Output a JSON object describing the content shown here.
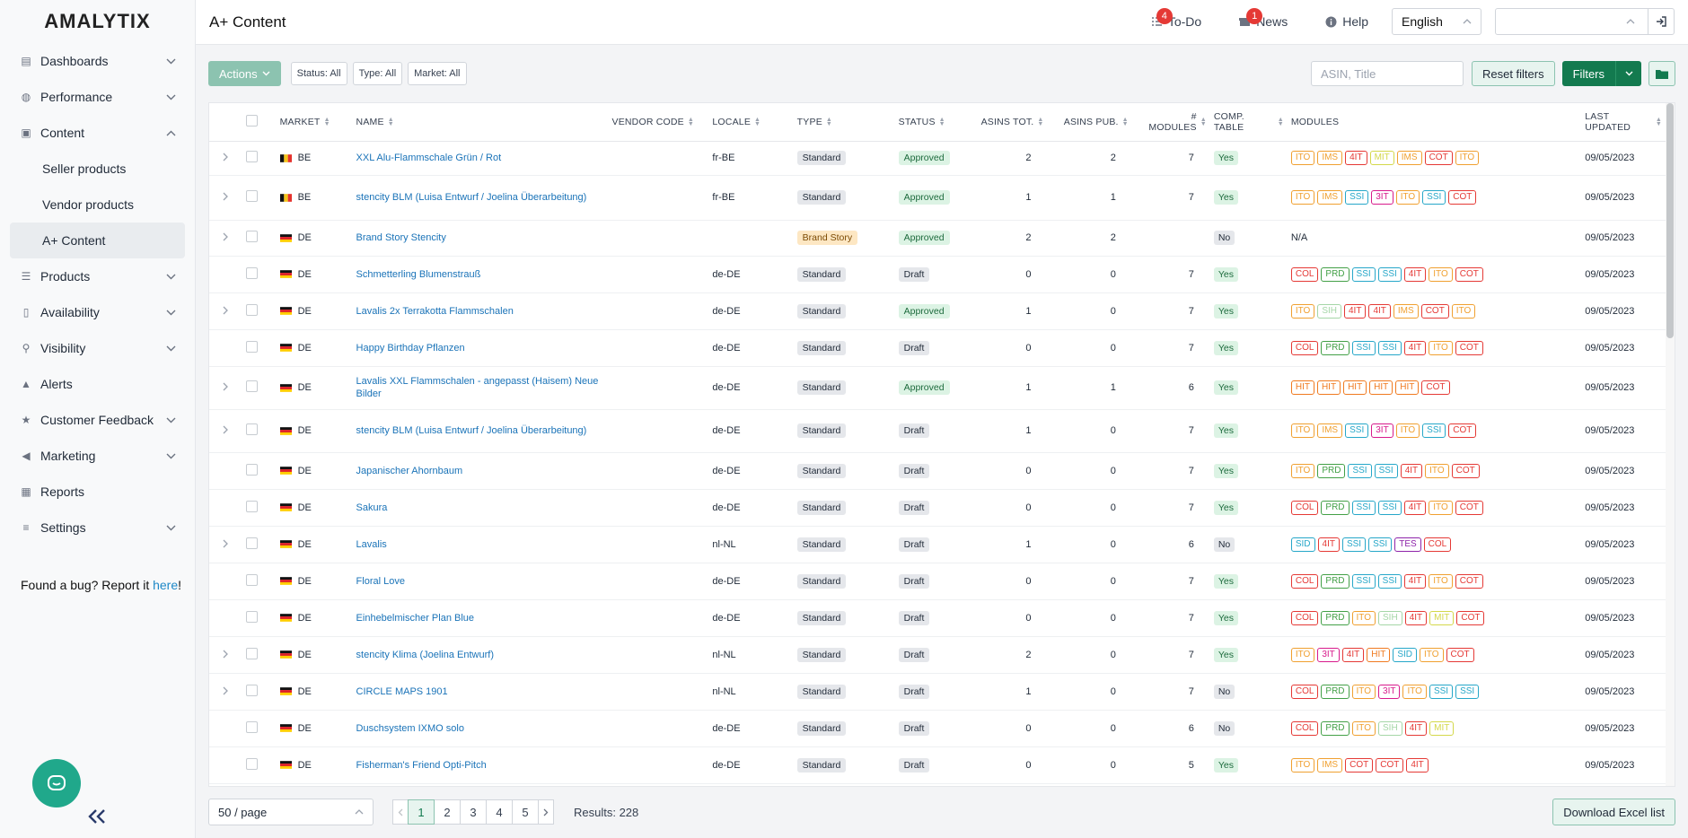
{
  "app": {
    "logo": "AMALYTIX",
    "page_title": "A+ Content"
  },
  "sidebar": {
    "items": [
      {
        "label": "Dashboards",
        "icon": "dashboard-icon",
        "chevron": "down"
      },
      {
        "label": "Performance",
        "icon": "performance-icon",
        "chevron": "down"
      },
      {
        "label": "Content",
        "icon": "content-icon",
        "chevron": "up"
      },
      {
        "label": "Products",
        "icon": "list-icon",
        "chevron": "down"
      },
      {
        "label": "Availability",
        "icon": "thermometer-icon",
        "chevron": "down"
      },
      {
        "label": "Visibility",
        "icon": "search-icon",
        "chevron": "down"
      },
      {
        "label": "Alerts",
        "icon": "bell-icon",
        "chevron": ""
      },
      {
        "label": "Customer Feedback",
        "icon": "star-icon",
        "chevron": "down"
      },
      {
        "label": "Marketing",
        "icon": "megaphone-icon",
        "chevron": "down"
      },
      {
        "label": "Reports",
        "icon": "table-icon",
        "chevron": ""
      },
      {
        "label": "Settings",
        "icon": "sliders-icon",
        "chevron": "down"
      }
    ],
    "content_sub": [
      "Seller products",
      "Vendor products",
      "A+ Content"
    ],
    "bug_text": "Found a bug? Report it ",
    "bug_link": "here",
    "bug_end": "!"
  },
  "topbar": {
    "todo_label": "To-Do",
    "todo_count": "4",
    "news_label": "News",
    "news_count": "1",
    "help_label": "Help",
    "language": "English",
    "account_value": ""
  },
  "toolbar": {
    "actions_label": "Actions",
    "chips": [
      "Status: All",
      "Type: All",
      "Market: All"
    ],
    "search_placeholder": "ASIN, Title",
    "reset_label": "Reset filters",
    "filters_label": "Filters"
  },
  "table": {
    "columns": {
      "market": "MARKET",
      "name": "NAME",
      "vendor_code": "VENDOR CODE",
      "locale": "LOCALE",
      "type": "TYPE",
      "status": "STATUS",
      "asins_tot": "ASINS TOT.",
      "asins_pub": "ASINS PUB.",
      "modules_1": "#",
      "modules_2": "MODULES",
      "comp_1": "COMP.",
      "comp_2": "TABLE",
      "module_list": "MODULES",
      "updated_1": "LAST",
      "updated_2": "UPDATED"
    },
    "module_colors": {
      "ITO": "#f0a030",
      "IMS": "#f0a030",
      "4IT": "#e53935",
      "MIT": "#d4d84a",
      "COT": "#e53935",
      "SSI": "#26a7c9",
      "3IT": "#d81b8c",
      "COL": "#e53935",
      "PRD": "#43a047",
      "SIH": "#a5d6a7",
      "HIT": "#f07a20",
      "SID": "#26a7c9",
      "TES": "#8e24aa"
    },
    "rows": [
      {
        "expand": true,
        "market": "BE",
        "flag": "be",
        "name": "XXL Alu-Flammschale Grün / Rot",
        "vendor": "",
        "locale": "fr-BE",
        "type": "Standard",
        "status": "Approved",
        "asins_tot": "2",
        "asins_pub": "2",
        "modules": "7",
        "comp": "Yes",
        "module_list": [
          "ITO",
          "IMS",
          "4IT",
          "MIT",
          "IMS",
          "COT",
          "ITO"
        ],
        "updated": "09/05/2023",
        "h": 38
      },
      {
        "expand": true,
        "market": "BE",
        "flag": "be",
        "name": "stencity BLM (Luisa Entwurf / Joelina Überarbeitung)",
        "vendor": "",
        "locale": "fr-BE",
        "type": "Standard",
        "status": "Approved",
        "asins_tot": "1",
        "asins_pub": "1",
        "modules": "7",
        "comp": "Yes",
        "module_list": [
          "ITO",
          "IMS",
          "SSI",
          "3IT",
          "ITO",
          "SSI",
          "COT"
        ],
        "updated": "09/05/2023",
        "h": 50
      },
      {
        "expand": true,
        "market": "DE",
        "flag": "de",
        "name": "Brand Story Stencity",
        "vendor": "",
        "locale": "",
        "type": "Brand Story",
        "status": "Approved",
        "asins_tot": "2",
        "asins_pub": "2",
        "modules": "",
        "comp": "No",
        "module_list": [],
        "module_text": "N/A",
        "updated": "09/05/2023",
        "h": 40
      },
      {
        "expand": false,
        "market": "DE",
        "flag": "de",
        "name": "Schmetterling Blumenstrauß",
        "vendor": "",
        "locale": "de-DE",
        "type": "Standard",
        "status": "Draft",
        "asins_tot": "0",
        "asins_pub": "0",
        "modules": "7",
        "comp": "Yes",
        "module_list": [
          "COL",
          "PRD",
          "SSI",
          "SSI",
          "4IT",
          "ITO",
          "COT"
        ],
        "updated": "09/05/2023",
        "h": 41
      },
      {
        "expand": true,
        "market": "DE",
        "flag": "de",
        "name": "Lavalis 2x Terrakotta Flammschalen",
        "vendor": "",
        "locale": "de-DE",
        "type": "Standard",
        "status": "Approved",
        "asins_tot": "1",
        "asins_pub": "0",
        "modules": "7",
        "comp": "Yes",
        "module_list": [
          "ITO",
          "SIH",
          "4IT",
          "4IT",
          "IMS",
          "COT",
          "ITO"
        ],
        "updated": "09/05/2023",
        "h": 41
      },
      {
        "expand": false,
        "market": "DE",
        "flag": "de",
        "name": "Happy Birthday Pflanzen",
        "vendor": "",
        "locale": "de-DE",
        "type": "Standard",
        "status": "Draft",
        "asins_tot": "0",
        "asins_pub": "0",
        "modules": "7",
        "comp": "Yes",
        "module_list": [
          "COL",
          "PRD",
          "SSI",
          "SSI",
          "4IT",
          "ITO",
          "COT"
        ],
        "updated": "09/05/2023",
        "h": 41
      },
      {
        "expand": true,
        "market": "DE",
        "flag": "de",
        "name": "Lavalis XXL Flammschalen - angepasst (Haisem) Neue Bilder",
        "vendor": "",
        "locale": "de-DE",
        "type": "Standard",
        "status": "Approved",
        "asins_tot": "1",
        "asins_pub": "1",
        "modules": "6",
        "comp": "Yes",
        "module_list": [
          "HIT",
          "HIT",
          "HIT",
          "HIT",
          "HIT",
          "COT"
        ],
        "updated": "09/05/2023",
        "h": 48
      },
      {
        "expand": true,
        "market": "DE",
        "flag": "de",
        "name": "stencity BLM (Luisa Entwurf / Joelina Überarbeitung)",
        "vendor": "",
        "locale": "de-DE",
        "type": "Standard",
        "status": "Draft",
        "asins_tot": "1",
        "asins_pub": "0",
        "modules": "7",
        "comp": "Yes",
        "module_list": [
          "ITO",
          "IMS",
          "SSI",
          "3IT",
          "ITO",
          "SSI",
          "COT"
        ],
        "updated": "09/05/2023",
        "h": 48
      },
      {
        "expand": false,
        "market": "DE",
        "flag": "de",
        "name": "Japanischer Ahornbaum",
        "vendor": "",
        "locale": "de-DE",
        "type": "Standard",
        "status": "Draft",
        "asins_tot": "0",
        "asins_pub": "0",
        "modules": "7",
        "comp": "Yes",
        "module_list": [
          "ITO",
          "PRD",
          "SSI",
          "SSI",
          "4IT",
          "ITO",
          "COT"
        ],
        "updated": "09/05/2023",
        "h": 41
      },
      {
        "expand": false,
        "market": "DE",
        "flag": "de",
        "name": "Sakura",
        "vendor": "",
        "locale": "de-DE",
        "type": "Standard",
        "status": "Draft",
        "asins_tot": "0",
        "asins_pub": "0",
        "modules": "7",
        "comp": "Yes",
        "module_list": [
          "COL",
          "PRD",
          "SSI",
          "SSI",
          "4IT",
          "ITO",
          "COT"
        ],
        "updated": "09/05/2023",
        "h": 41
      },
      {
        "expand": true,
        "market": "DE",
        "flag": "de",
        "name": "Lavalis",
        "vendor": "",
        "locale": "nl-NL",
        "type": "Standard",
        "status": "Draft",
        "asins_tot": "1",
        "asins_pub": "0",
        "modules": "6",
        "comp": "No",
        "module_list": [
          "SID",
          "4IT",
          "SSI",
          "SSI",
          "TES",
          "COL"
        ],
        "updated": "09/05/2023",
        "h": 41
      },
      {
        "expand": false,
        "market": "DE",
        "flag": "de",
        "name": "Floral Love",
        "vendor": "",
        "locale": "de-DE",
        "type": "Standard",
        "status": "Draft",
        "asins_tot": "0",
        "asins_pub": "0",
        "modules": "7",
        "comp": "Yes",
        "module_list": [
          "COL",
          "PRD",
          "SSI",
          "SSI",
          "4IT",
          "ITO",
          "COT"
        ],
        "updated": "09/05/2023",
        "h": 41
      },
      {
        "expand": false,
        "market": "DE",
        "flag": "de",
        "name": "Einhebelmischer Plan Blue",
        "vendor": "",
        "locale": "de-DE",
        "type": "Standard",
        "status": "Draft",
        "asins_tot": "0",
        "asins_pub": "0",
        "modules": "7",
        "comp": "Yes",
        "module_list": [
          "COL",
          "PRD",
          "ITO",
          "SIH",
          "4IT",
          "MIT",
          "COT"
        ],
        "updated": "09/05/2023",
        "h": 41
      },
      {
        "expand": true,
        "market": "DE",
        "flag": "de",
        "name": "stencity Klima (Joelina Entwurf)",
        "vendor": "",
        "locale": "nl-NL",
        "type": "Standard",
        "status": "Draft",
        "asins_tot": "2",
        "asins_pub": "0",
        "modules": "7",
        "comp": "Yes",
        "module_list": [
          "ITO",
          "3IT",
          "4IT",
          "HIT",
          "SID",
          "ITO",
          "COT"
        ],
        "updated": "09/05/2023",
        "h": 41
      },
      {
        "expand": true,
        "market": "DE",
        "flag": "de",
        "name": "CIRCLE MAPS 1901",
        "vendor": "",
        "locale": "nl-NL",
        "type": "Standard",
        "status": "Draft",
        "asins_tot": "1",
        "asins_pub": "0",
        "modules": "7",
        "comp": "No",
        "module_list": [
          "COL",
          "PRD",
          "ITO",
          "3IT",
          "ITO",
          "SSI",
          "SSI"
        ],
        "updated": "09/05/2023",
        "h": 41
      },
      {
        "expand": false,
        "market": "DE",
        "flag": "de",
        "name": "Duschsystem IXMO solo",
        "vendor": "",
        "locale": "de-DE",
        "type": "Standard",
        "status": "Draft",
        "asins_tot": "0",
        "asins_pub": "0",
        "modules": "6",
        "comp": "No",
        "module_list": [
          "COL",
          "PRD",
          "ITO",
          "SIH",
          "4IT",
          "MIT"
        ],
        "updated": "09/05/2023",
        "h": 41
      },
      {
        "expand": false,
        "market": "DE",
        "flag": "de",
        "name": "Fisherman's Friend Opti-Pitch",
        "vendor": "",
        "locale": "de-DE",
        "type": "Standard",
        "status": "Draft",
        "asins_tot": "0",
        "asins_pub": "0",
        "modules": "5",
        "comp": "Yes",
        "module_list": [
          "ITO",
          "IMS",
          "COT",
          "COT",
          "4IT"
        ],
        "updated": "09/05/2023",
        "h": 41
      }
    ]
  },
  "footer": {
    "page_size": "50 / page",
    "pages": [
      "1",
      "2",
      "3",
      "4",
      "5"
    ],
    "active_page": "1",
    "results": "Results: 228",
    "download_label": "Download Excel list"
  }
}
